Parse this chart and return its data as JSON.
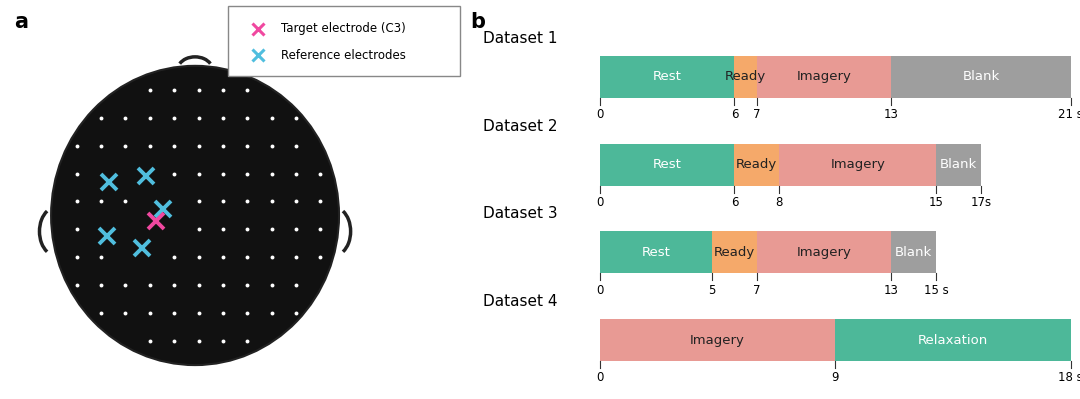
{
  "panel_a_label": "a",
  "panel_b_label": "b",
  "head_color": "#111111",
  "dot_color": "white",
  "target_color": "#F048A0",
  "ref_color": "#50BEDE",
  "legend_target_label": "Target electrode (C3)",
  "legend_ref_label": "Reference electrodes",
  "datasets": [
    {
      "name": "Dataset 1",
      "segments": [
        {
          "label": "Rest",
          "start": 0,
          "end": 6,
          "color": "#4DB899",
          "text_color": "white"
        },
        {
          "label": "Ready",
          "start": 6,
          "end": 7,
          "color": "#F5A96A",
          "text_color": "#222222"
        },
        {
          "label": "Imagery",
          "start": 7,
          "end": 13,
          "color": "#E89A94",
          "text_color": "#222222"
        },
        {
          "label": "Blank",
          "start": 13,
          "end": 21,
          "color": "#9E9E9E",
          "text_color": "white"
        }
      ],
      "ticks": [
        0,
        6,
        7,
        13,
        21
      ],
      "total": 21,
      "end_label": "21 s"
    },
    {
      "name": "Dataset 2",
      "segments": [
        {
          "label": "Rest",
          "start": 0,
          "end": 6,
          "color": "#4DB899",
          "text_color": "white"
        },
        {
          "label": "Ready",
          "start": 6,
          "end": 8,
          "color": "#F5A96A",
          "text_color": "#222222"
        },
        {
          "label": "Imagery",
          "start": 8,
          "end": 15,
          "color": "#E89A94",
          "text_color": "#222222"
        },
        {
          "label": "Blank",
          "start": 15,
          "end": 17,
          "color": "#9E9E9E",
          "text_color": "white"
        }
      ],
      "ticks": [
        0,
        6,
        8,
        15,
        17
      ],
      "total": 17,
      "end_label": "17s"
    },
    {
      "name": "Dataset 3",
      "segments": [
        {
          "label": "Rest",
          "start": 0,
          "end": 5,
          "color": "#4DB899",
          "text_color": "white"
        },
        {
          "label": "Ready",
          "start": 5,
          "end": 7,
          "color": "#F5A96A",
          "text_color": "#222222"
        },
        {
          "label": "Imagery",
          "start": 7,
          "end": 13,
          "color": "#E89A94",
          "text_color": "#222222"
        },
        {
          "label": "Blank",
          "start": 13,
          "end": 15,
          "color": "#9E9E9E",
          "text_color": "white"
        }
      ],
      "ticks": [
        0,
        5,
        7,
        13,
        15
      ],
      "total": 15,
      "end_label": "15 s"
    },
    {
      "name": "Dataset 4",
      "segments": [
        {
          "label": "Imagery",
          "start": 0,
          "end": 9,
          "color": "#E89A94",
          "text_color": "#222222"
        },
        {
          "label": "Relaxation",
          "start": 9,
          "end": 18,
          "color": "#4DB899",
          "text_color": "white"
        }
      ],
      "ticks": [
        0,
        9,
        18
      ],
      "total": 18,
      "end_label": "18 s"
    }
  ]
}
